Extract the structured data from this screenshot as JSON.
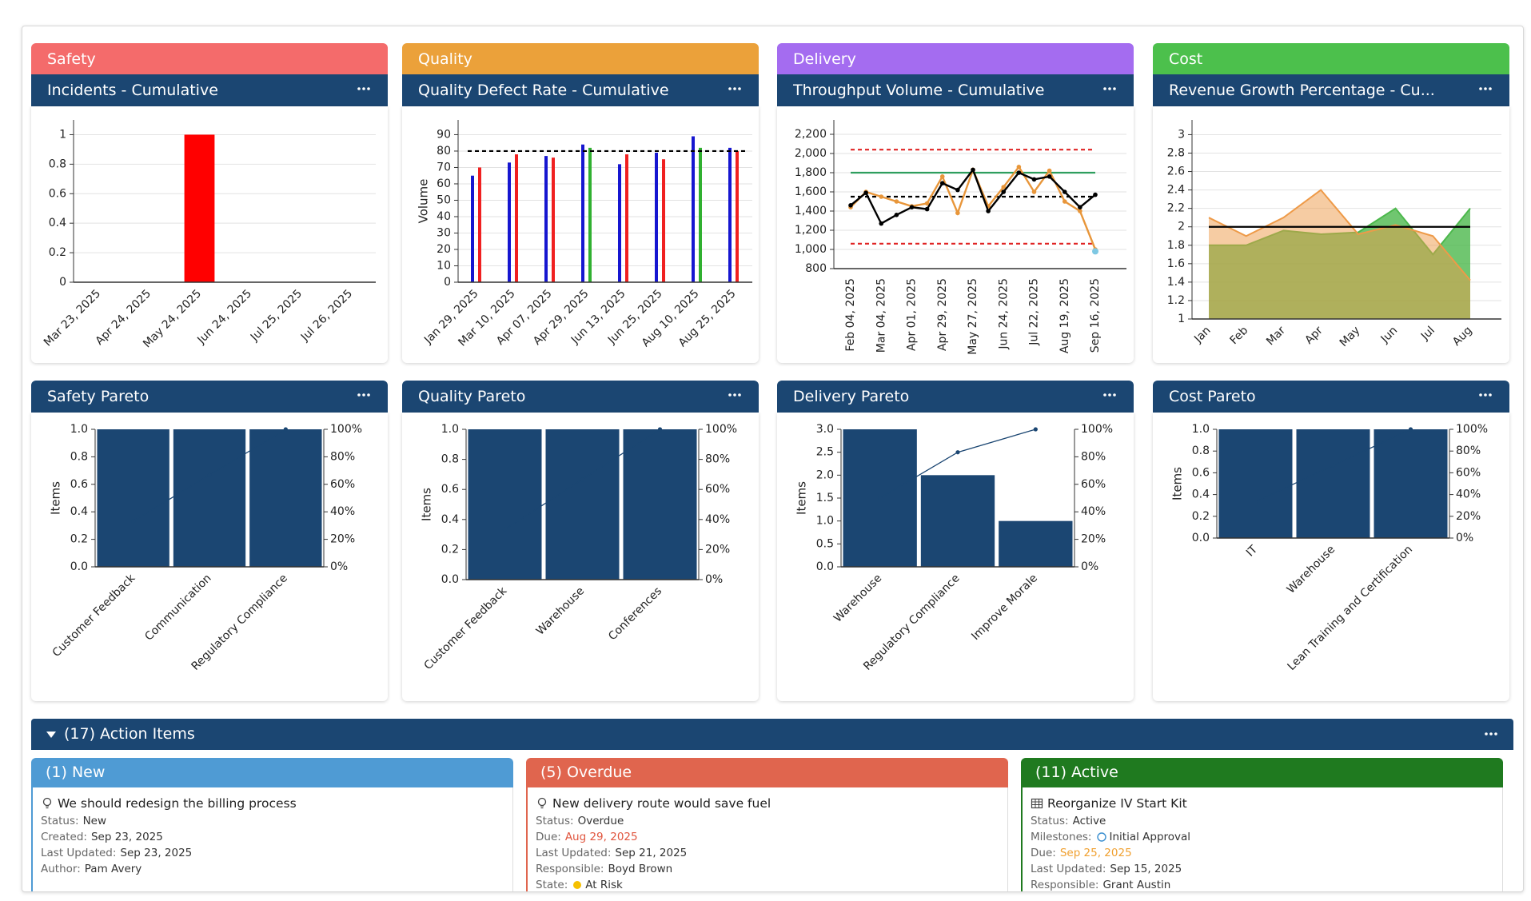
{
  "sections": [
    {
      "label": "Safety",
      "color": "#f46b6b"
    },
    {
      "label": "Quality",
      "color": "#eba13a"
    },
    {
      "label": "Delivery",
      "color": "#a46cf0"
    },
    {
      "label": "Cost",
      "color": "#4cc04c"
    }
  ],
  "chart_data": [
    {
      "type": "bar",
      "title": "Incidents - Cumulative",
      "categories": [
        "Mar 23, 2025",
        "Apr 24, 2025",
        "May 24, 2025",
        "Jun 24, 2025",
        "Jul 25, 2025",
        "Jul 26, 2025"
      ],
      "values": [
        0,
        0,
        1,
        0,
        0,
        0
      ],
      "color": "#ff0000",
      "ylim": [
        0,
        1.1
      ],
      "yticks": [
        0,
        0.2,
        0.4,
        0.6,
        0.8,
        1
      ],
      "grid": true
    },
    {
      "type": "grouped_bar",
      "title": "Quality Defect Rate - Cumulative",
      "y_label": "Volume",
      "categories": [
        "Jan 29, 2025",
        "Mar 10, 2025",
        "Apr 07, 2025",
        "Apr 29, 2025",
        "Jun 13, 2025",
        "Jun 25, 2025",
        "Aug 10, 2025",
        "Aug 25, 2025"
      ],
      "series": [
        {
          "color": "#1616d0",
          "values": [
            65,
            73,
            77,
            84,
            72,
            79,
            89,
            82
          ]
        },
        {
          "colors": [
            "#f02020",
            "#f02020",
            "#f02020",
            "#30b030",
            "#f02020",
            "#f02020",
            "#30b030",
            "#f02020"
          ],
          "values": [
            70,
            78,
            76,
            82,
            78,
            75,
            82,
            80
          ]
        }
      ],
      "reference_lines": [
        {
          "value": 80,
          "color": "#000000",
          "dash": true
        }
      ],
      "ylim": [
        0,
        99
      ],
      "yticks": [
        0,
        10,
        20,
        30,
        40,
        50,
        60,
        70,
        80,
        90
      ],
      "grid": true
    },
    {
      "type": "line",
      "title": "Throughput Volume - Cumulative",
      "categories": [
        "Feb 04, 2025",
        null,
        "Mar 04, 2025",
        null,
        "Apr 01, 2025",
        null,
        "Apr 29, 2025",
        null,
        "May 27, 2025",
        null,
        "Jun 24, 2025",
        null,
        "Jul 22, 2025",
        null,
        "Aug 19, 2025",
        null,
        "Sep 16, 2025"
      ],
      "series": [
        {
          "color": "#e8963a",
          "markers": true,
          "line": true,
          "values": [
            1440,
            1600,
            1550,
            1500,
            1450,
            1480,
            1760,
            1380,
            1830,
            1450,
            1650,
            1860,
            1600,
            1820,
            1500,
            1400,
            1000
          ]
        },
        {
          "color": "#000000",
          "markers": true,
          "line": true,
          "values": [
            1460,
            1590,
            1270,
            1360,
            1440,
            1420,
            1690,
            1620,
            1830,
            1400,
            1600,
            1800,
            1730,
            1760,
            1600,
            1440,
            1570
          ]
        },
        {
          "color": "#7ec8e3",
          "markers": true,
          "line": false,
          "values": [
            null,
            null,
            null,
            null,
            null,
            null,
            null,
            null,
            null,
            null,
            null,
            null,
            null,
            null,
            null,
            null,
            980
          ]
        }
      ],
      "reference_lines": [
        {
          "value": 2040,
          "color": "#e02424",
          "dash": true
        },
        {
          "value": 1800,
          "color": "#2e9e5e",
          "dash": false
        },
        {
          "value": 1550,
          "color": "#000000",
          "dash": true
        },
        {
          "value": 1060,
          "color": "#e02424",
          "dash": true
        }
      ],
      "ylim": [
        800,
        2350
      ],
      "yticks": [
        800,
        {
          "value": 1000,
          "label": "1,000"
        },
        {
          "value": 1200,
          "label": "1,200"
        },
        {
          "value": 1400,
          "label": "1,400"
        },
        {
          "value": 1600,
          "label": "1,600"
        },
        {
          "value": 1800,
          "label": "1,800"
        },
        {
          "value": 2000,
          "label": "2,000"
        },
        {
          "value": 2200,
          "label": "2,200"
        }
      ],
      "grid": true
    },
    {
      "type": "area",
      "title": "Revenue Growth Percentage - Cu...",
      "categories": [
        "Jan",
        "Feb",
        "Mar",
        "Apr",
        "May",
        "Jun",
        "Jul",
        "Aug"
      ],
      "series": [
        {
          "color": "#4cb84c",
          "values": [
            1.8,
            1.8,
            1.96,
            1.92,
            1.94,
            2.2,
            1.7,
            2.2
          ]
        },
        {
          "color": "#ee9a48",
          "values": [
            2.1,
            1.9,
            2.1,
            2.4,
            1.92,
            2.02,
            1.9,
            1.42
          ]
        }
      ],
      "reference_lines": [
        {
          "value": 2,
          "color": "#000000",
          "dash": false
        }
      ],
      "ylim": [
        1,
        3.16
      ],
      "yticks": [
        1,
        1.2,
        1.4,
        1.6,
        1.8,
        2,
        2.2,
        2.4,
        2.6,
        2.8,
        3
      ],
      "grid": true
    },
    {
      "type": "pareto",
      "title": "Safety Pareto",
      "y_label": "Items",
      "categories": [
        "Customer Feedback",
        "Communication",
        "Regulatory Compliance"
      ],
      "values": [
        1,
        1,
        1
      ],
      "color": "#1b4672",
      "series": [
        {
          "axis": "y2",
          "color": "#1b4672",
          "values": [
            33.3,
            66.7,
            100
          ]
        }
      ],
      "ylim": [
        0,
        1
      ],
      "yticks": [
        {
          "value": 0,
          "label": "0.0"
        },
        0.2,
        0.4,
        0.6,
        0.8,
        {
          "value": 1,
          "label": "1.0"
        }
      ],
      "y2lim": [
        0,
        100
      ],
      "y2ticks": [
        {
          "value": 0,
          "label": "0%"
        },
        {
          "value": 20,
          "label": "20%"
        },
        {
          "value": 40,
          "label": "40%"
        },
        {
          "value": 60,
          "label": "60%"
        },
        {
          "value": 80,
          "label": "80%"
        },
        {
          "value": 100,
          "label": "100%"
        }
      ]
    },
    {
      "type": "pareto",
      "title": "Quality Pareto",
      "y_label": "Items",
      "categories": [
        "Customer Feedback",
        "Warehouse",
        "Conferences"
      ],
      "values": [
        1,
        1,
        1
      ],
      "color": "#1b4672",
      "series": [
        {
          "axis": "y2",
          "color": "#1b4672",
          "values": [
            33.3,
            66.7,
            100
          ]
        }
      ],
      "ylim": [
        0,
        1
      ],
      "yticks": [
        {
          "value": 0,
          "label": "0.0"
        },
        0.2,
        0.4,
        0.6,
        0.8,
        {
          "value": 1,
          "label": "1.0"
        }
      ],
      "y2lim": [
        0,
        100
      ],
      "y2ticks": [
        {
          "value": 0,
          "label": "0%"
        },
        {
          "value": 20,
          "label": "20%"
        },
        {
          "value": 40,
          "label": "40%"
        },
        {
          "value": 60,
          "label": "60%"
        },
        {
          "value": 80,
          "label": "80%"
        },
        {
          "value": 100,
          "label": "100%"
        }
      ]
    },
    {
      "type": "pareto",
      "title": "Delivery Pareto",
      "y_label": "Items",
      "categories": [
        "Warehouse",
        "Regulatory Compliance",
        "Improve Morale"
      ],
      "values": [
        3,
        2,
        1
      ],
      "color": "#1b4672",
      "series": [
        {
          "axis": "y2",
          "color": "#1b4672",
          "values": [
            50,
            83.3,
            100
          ]
        }
      ],
      "ylim": [
        0,
        3
      ],
      "yticks": [
        {
          "value": 0,
          "label": "0.0"
        },
        0.5,
        {
          "value": 1,
          "label": "1.0"
        },
        1.5,
        {
          "value": 2,
          "label": "2.0"
        },
        2.5,
        {
          "value": 3,
          "label": "3.0"
        }
      ],
      "y2lim": [
        0,
        100
      ],
      "y2ticks": [
        {
          "value": 0,
          "label": "0%"
        },
        {
          "value": 20,
          "label": "20%"
        },
        {
          "value": 40,
          "label": "40%"
        },
        {
          "value": 60,
          "label": "60%"
        },
        {
          "value": 80,
          "label": "80%"
        },
        {
          "value": 100,
          "label": "100%"
        }
      ]
    },
    {
      "type": "pareto",
      "title": "Cost Pareto",
      "y_label": "Items",
      "categories": [
        "IT",
        "Warehouse",
        "Lean Training and Certification"
      ],
      "values": [
        1,
        1,
        1
      ],
      "color": "#1b4672",
      "series": [
        {
          "axis": "y2",
          "color": "#1b4672",
          "values": [
            33.3,
            66.7,
            100
          ]
        }
      ],
      "ylim": [
        0,
        1
      ],
      "yticks": [
        {
          "value": 0,
          "label": "0.0"
        },
        0.2,
        0.4,
        0.6,
        0.8,
        {
          "value": 1,
          "label": "1.0"
        }
      ],
      "y2lim": [
        0,
        100
      ],
      "y2ticks": [
        {
          "value": 0,
          "label": "0%"
        },
        {
          "value": 20,
          "label": "20%"
        },
        {
          "value": 40,
          "label": "40%"
        },
        {
          "value": 60,
          "label": "60%"
        },
        {
          "value": 80,
          "label": "80%"
        },
        {
          "value": 100,
          "label": "100%"
        }
      ]
    }
  ],
  "action_items": {
    "title": "(17) Action Items",
    "columns": [
      {
        "title": "(1) New",
        "color": "#4f9bd4",
        "items": [
          {
            "title": "We should redesign the billing process",
            "fields": [
              {
                "label": "Status:",
                "value": "New"
              },
              {
                "label": "Created:",
                "value": "Sep 23, 2025"
              },
              {
                "label": "Last Updated:",
                "value": "Sep 23, 2025"
              },
              {
                "label": "Author:",
                "value": "Pam Avery"
              }
            ]
          }
        ]
      },
      {
        "title": "(5) Overdue",
        "color": "#e0654e",
        "items": [
          {
            "title": "New delivery route would save fuel",
            "fields": [
              {
                "label": "Status:",
                "value": "Overdue"
              },
              {
                "label": "Due:",
                "value": "Aug 29, 2025",
                "color": "#e0553e"
              },
              {
                "label": "Last Updated:",
                "value": "Sep 21, 2025"
              },
              {
                "label": "Responsible:",
                "value": "Boyd Brown"
              },
              {
                "label": "State:",
                "value": "At Risk",
                "marker": "#f5c000"
              }
            ]
          }
        ]
      },
      {
        "title": "(11) Active",
        "color": "#1f7a1f",
        "items": [
          {
            "title": "Reorganize IV Start Kit",
            "fields": [
              {
                "label": "Status:",
                "value": "Active"
              },
              {
                "label": "Milestones:",
                "value": "Initial Approval",
                "marker": "#3a8fd0"
              },
              {
                "label": "Due:",
                "value": "Sep 25, 2025",
                "color": "#f0a030"
              },
              {
                "label": "Last Updated:",
                "value": "Sep 15, 2025"
              },
              {
                "label": "Responsible:",
                "value": "Grant Austin"
              }
            ]
          }
        ]
      }
    ]
  }
}
